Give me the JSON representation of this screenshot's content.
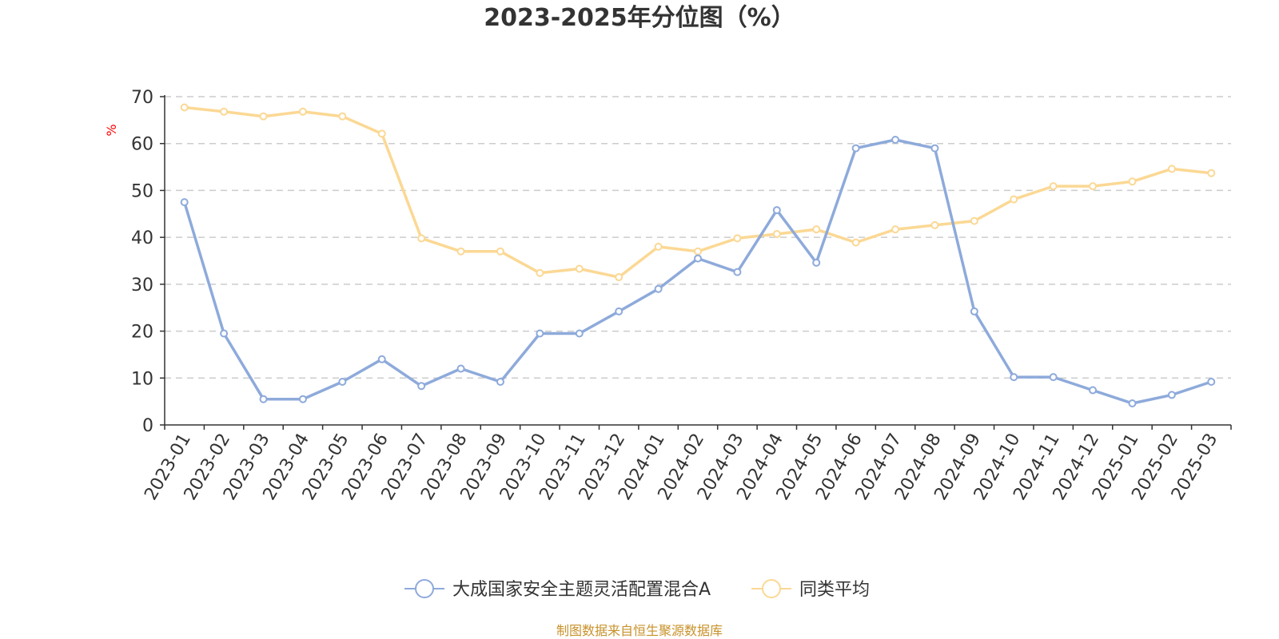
{
  "chart_data": {
    "type": "line",
    "title": "2023-2025年分位图（%）",
    "ylabel": "%",
    "ylim": [
      0,
      70
    ],
    "yticks": [
      0,
      10,
      20,
      30,
      40,
      50,
      60,
      70
    ],
    "grid": true,
    "legend_position": "bottom",
    "categories": [
      "2023-01",
      "2023-02",
      "2023-03",
      "2023-04",
      "2023-05",
      "2023-06",
      "2023-07",
      "2023-08",
      "2023-09",
      "2023-10",
      "2023-11",
      "2023-12",
      "2024-01",
      "2024-02",
      "2024-03",
      "2024-04",
      "2024-05",
      "2024-06",
      "2024-07",
      "2024-08",
      "2024-09",
      "2024-10",
      "2024-11",
      "2024-12",
      "2025-01",
      "2025-02",
      "2025-03"
    ],
    "series": [
      {
        "name": "大成国家安全主题灵活配置混合A",
        "color": "#8eaadb",
        "values": [
          47.5,
          19.5,
          5.5,
          5.5,
          9.2,
          14.0,
          8.3,
          12.0,
          9.2,
          19.5,
          19.5,
          24.2,
          29.0,
          35.5,
          32.6,
          45.8,
          34.6,
          59.0,
          60.8,
          59.0,
          24.2,
          10.2,
          10.2,
          7.4,
          4.6,
          6.4,
          9.2
        ]
      },
      {
        "name": "同类平均",
        "color": "#fbd894",
        "values": [
          67.7,
          66.8,
          65.8,
          66.8,
          65.8,
          62.1,
          39.8,
          37.0,
          37.0,
          32.4,
          33.3,
          31.5,
          38.0,
          37.0,
          39.8,
          40.7,
          41.7,
          38.9,
          41.7,
          42.6,
          43.5,
          48.1,
          50.9,
          50.9,
          51.9,
          54.6,
          53.7
        ]
      }
    ]
  },
  "footer": {
    "source": "制图数据来自恒生聚源数据库"
  }
}
